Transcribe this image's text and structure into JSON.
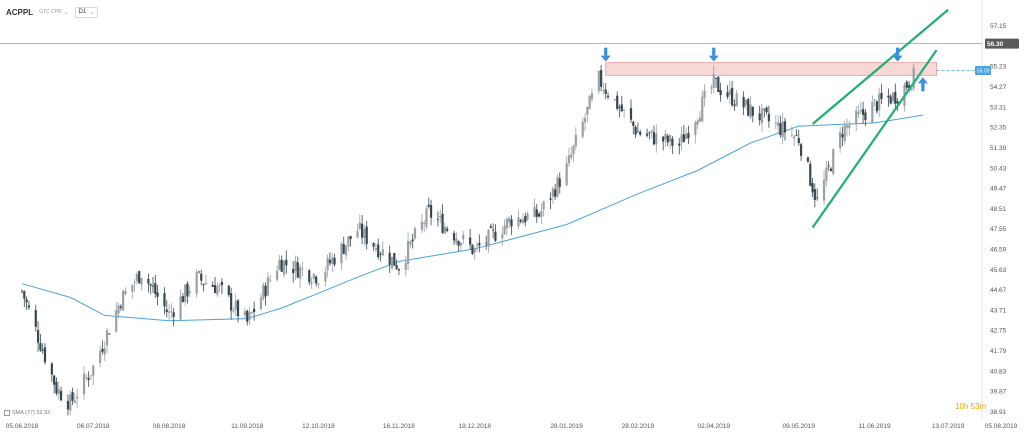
{
  "toolbar": {
    "symbol": "ACPPL",
    "timezone": "GTC CPR",
    "timeframe": "D1"
  },
  "sma_legend": "SMA (77) 52.92",
  "countdown": "10h 53m",
  "colors": {
    "candle_up": "#9aa0a6",
    "candle_down": "#37474f",
    "sma": "#4aa3df",
    "channel": "#1fae73",
    "resistance_fill": "#f8d7d7",
    "resistance_stroke": "#e89a9a",
    "arrow": "#3b8fe0",
    "bid_bg": "#5a5a5a",
    "ask_bg": "#4aa3df"
  },
  "chart_data": {
    "type": "candlestick",
    "symbol": "ACPPL",
    "timeframe": "D1",
    "x_tick_labels": [
      "05.06.2018",
      "06.07.2018",
      "08.08.2018",
      "11.09.2018",
      "12.10.2018",
      "16.11.2018",
      "19.12.2018",
      "28.01.2019",
      "28.02.2019",
      "02.04.2019",
      "09.05.2019",
      "11.06.2019",
      "13.07.2019",
      "05.08.2019"
    ],
    "y_tick_labels": [
      "57.15",
      "55.23",
      "54.27",
      "53.31",
      "52.35",
      "51.39",
      "50.43",
      "49.47",
      "48.51",
      "47.55",
      "46.59",
      "45.63",
      "44.67",
      "43.71",
      "42.75",
      "41.79",
      "40.83",
      "39.87",
      "38.91"
    ],
    "ylim": [
      38.6,
      57.7
    ],
    "close_path": [
      {
        "d": "05.06.2018",
        "v": 44.6
      },
      {
        "d": "20.06.2018",
        "v": 40.0
      },
      {
        "d": "26.06.2018",
        "v": 39.3
      },
      {
        "d": "06.07.2018",
        "v": 41.0
      },
      {
        "d": "18.07.2018",
        "v": 44.2
      },
      {
        "d": "27.07.2018",
        "v": 45.5
      },
      {
        "d": "08.08.2018",
        "v": 43.5
      },
      {
        "d": "20.08.2018",
        "v": 45.2
      },
      {
        "d": "29.08.2018",
        "v": 44.8
      },
      {
        "d": "11.09.2018",
        "v": 43.1
      },
      {
        "d": "25.09.2018",
        "v": 46.0
      },
      {
        "d": "12.10.2018",
        "v": 45.3
      },
      {
        "d": "29.10.2018",
        "v": 47.5
      },
      {
        "d": "16.11.2018",
        "v": 45.8
      },
      {
        "d": "29.11.2018",
        "v": 48.3
      },
      {
        "d": "19.12.2018",
        "v": 46.5
      },
      {
        "d": "04.01.2019",
        "v": 48.0
      },
      {
        "d": "16.01.2019",
        "v": 48.2
      },
      {
        "d": "28.01.2019",
        "v": 50.4
      },
      {
        "d": "11.02.2019",
        "v": 54.6
      },
      {
        "d": "28.02.2019",
        "v": 52.1
      },
      {
        "d": "18.03.2019",
        "v": 51.5
      },
      {
        "d": "02.04.2019",
        "v": 54.4
      },
      {
        "d": "17.04.2019",
        "v": 53.2
      },
      {
        "d": "09.05.2019",
        "v": 51.8
      },
      {
        "d": "17.05.2019",
        "v": 48.8
      },
      {
        "d": "28.05.2019",
        "v": 52.2
      },
      {
        "d": "11.06.2019",
        "v": 53.4
      },
      {
        "d": "21.06.2019",
        "v": 53.9
      },
      {
        "d": "01.07.2019",
        "v": 55.1
      }
    ],
    "sma": {
      "name": "SMA (77)",
      "last": 52.92,
      "points": [
        {
          "d": "05.06.2018",
          "v": 44.95
        },
        {
          "d": "26.06.2018",
          "v": 44.3
        },
        {
          "d": "11.07.2018",
          "v": 43.45
        },
        {
          "d": "08.08.2018",
          "v": 43.2
        },
        {
          "d": "11.09.2018",
          "v": 43.3
        },
        {
          "d": "26.09.2018",
          "v": 43.8
        },
        {
          "d": "12.10.2018",
          "v": 44.5
        },
        {
          "d": "30.10.2018",
          "v": 45.3
        },
        {
          "d": "16.11.2018",
          "v": 46.0
        },
        {
          "d": "19.12.2018",
          "v": 46.6
        },
        {
          "d": "16.01.2019",
          "v": 47.4
        },
        {
          "d": "28.01.2019",
          "v": 47.75
        },
        {
          "d": "28.02.2019",
          "v": 49.2
        },
        {
          "d": "26.03.2019",
          "v": 50.3
        },
        {
          "d": "18.04.2019",
          "v": 51.6
        },
        {
          "d": "09.05.2019",
          "v": 52.4
        },
        {
          "d": "11.06.2019",
          "v": 52.55
        },
        {
          "d": "02.07.2019",
          "v": 52.92
        }
      ]
    },
    "resistance_zone": {
      "from": "14.02.2019",
      "to": "08.07.2019",
      "low": 54.8,
      "high": 55.4
    },
    "price_line": 56.3,
    "current_price": 55.03,
    "price_tags": {
      "line": "56.30",
      "current": "55.03"
    },
    "channel": {
      "upper": [
        {
          "d": "15.05.2019",
          "v": 52.5
        },
        {
          "d": "13.07.2019",
          "v": 57.9
        }
      ],
      "lower": [
        {
          "d": "15.05.2019",
          "v": 47.6
        },
        {
          "d": "08.07.2019",
          "v": 56.0
        }
      ]
    },
    "resistance_touches": [
      "14.02.2019",
      "02.04.2019",
      "21.06.2019"
    ],
    "support_touch": "02.07.2019",
    "grid": false,
    "legend": "bottom-left"
  }
}
